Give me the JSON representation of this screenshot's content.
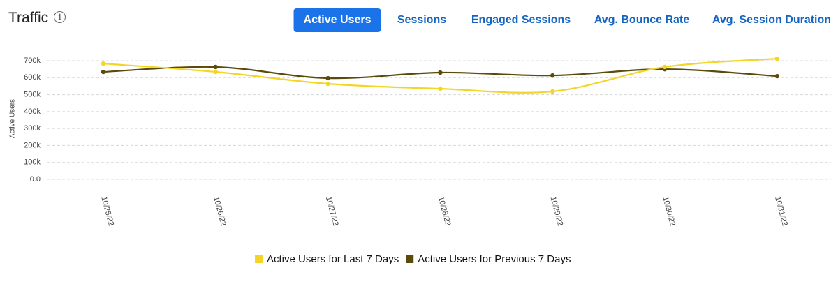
{
  "header": {
    "title": "Traffic"
  },
  "tabs": [
    "Active Users",
    "Sessions",
    "Engaged Sessions",
    "Avg. Bounce Rate",
    "Avg. Session Duration"
  ],
  "chart_data": {
    "type": "line",
    "y_label": "Active Users",
    "categories": [
      "10/25/22",
      "10/26/22",
      "10/27/22",
      "10/28/22",
      "10/29/22",
      "10/30/22",
      "10/31/22"
    ],
    "series": [
      {
        "name": "Active Users for Last 7 Days",
        "color": "#f3d524",
        "values": [
          683000,
          634000,
          564000,
          535000,
          519000,
          663000,
          712000
        ]
      },
      {
        "name": "Active Users for Previous 7 Days",
        "color": "#5a4a0c",
        "values": [
          634000,
          663000,
          597000,
          630000,
          613000,
          650000,
          609000
        ]
      }
    ],
    "ylim": [
      0,
      750000
    ],
    "yticks": [
      {
        "value": 0,
        "label": "0.0"
      },
      {
        "value": 100000,
        "label": "100k"
      },
      {
        "value": 200000,
        "label": "200k"
      },
      {
        "value": 300000,
        "label": "300k"
      },
      {
        "value": 400000,
        "label": "400k"
      },
      {
        "value": 500000,
        "label": "500k"
      },
      {
        "value": 600000,
        "label": "600k"
      },
      {
        "value": 700000,
        "label": "700k"
      }
    ],
    "grid": true
  }
}
